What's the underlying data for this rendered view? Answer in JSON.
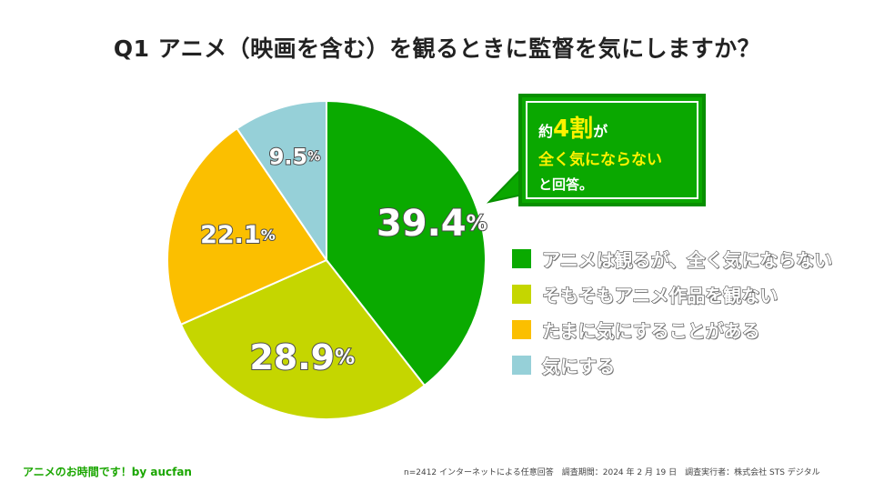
{
  "title": "Q1 アニメ（映画を含む）を観るときに監督を気にしますか？",
  "chart_data": {
    "type": "pie",
    "title": "Q1 アニメ（映画を含む）を観るときに監督を気にしますか？",
    "start": "12 o'clock, clockwise",
    "slices": [
      {
        "label": "アニメは観るが、全く気にならない",
        "value": 39.4,
        "display": "39.4",
        "color": "#0aaa00"
      },
      {
        "label": "そもそもアニメ作品を観ない",
        "value": 28.9,
        "display": "28.9",
        "color": "#c5d600"
      },
      {
        "label": "たまに気にすることがある",
        "value": 22.1,
        "display": "22.1",
        "color": "#fbbf00"
      },
      {
        "label": "気にする",
        "value": 9.5,
        "display": "9.5",
        "color": "#96d0d8"
      }
    ],
    "unit": "%",
    "legend_position": "right"
  },
  "callout": {
    "line1_prefix": "約",
    "line1_big": "4割",
    "line1_suffix": "が",
    "line2": "全く気にならない",
    "line3": "と回答。"
  },
  "footer": {
    "left": "アニメのお時間です！by aucfan",
    "right": "n=2412 インターネットによる任意回答　調査期間：2024 年 2 月 19 日　調査実行者：株式会社 STS デジタル"
  }
}
